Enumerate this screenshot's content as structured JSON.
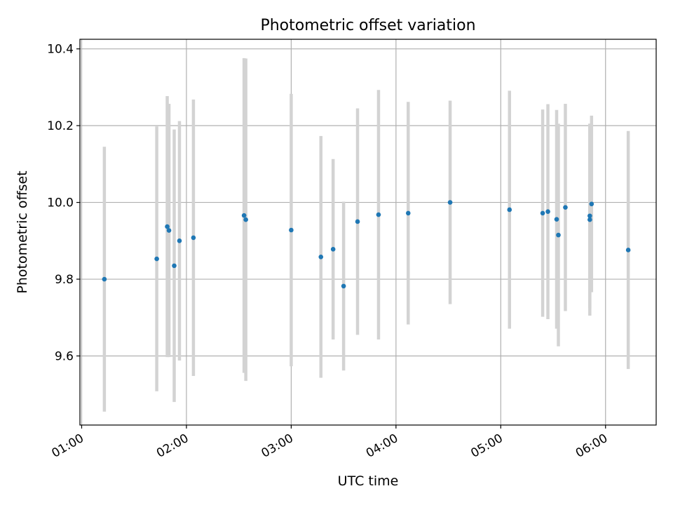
{
  "chart_data": {
    "type": "scatter",
    "title": "Photometric offset variation",
    "xlabel": "UTC time",
    "ylabel": "Photometric offset",
    "x_unit": "UTC clock time",
    "x_range": [
      "00:59",
      "06:29"
    ],
    "ylim": [
      9.42,
      10.425
    ],
    "x_ticks": [
      "01:00",
      "02:00",
      "03:00",
      "04:00",
      "05:00",
      "06:00"
    ],
    "y_ticks": [
      9.6,
      9.8,
      10.0,
      10.2,
      10.4
    ],
    "y_tick_labels": [
      "9.6",
      "9.8",
      "10.0",
      "10.2",
      "10.4"
    ],
    "grid": true,
    "errorbar_color": "#d3d3d3",
    "marker_color": "#1f77b4",
    "points": [
      {
        "t": "01:13",
        "y": 9.8,
        "err": 0.345
      },
      {
        "t": "01:43",
        "y": 9.853,
        "err": 0.345
      },
      {
        "t": "01:49",
        "y": 9.937,
        "err": 0.34
      },
      {
        "t": "01:50",
        "y": 9.927,
        "err": 0.33
      },
      {
        "t": "01:53",
        "y": 9.835,
        "err": 0.355
      },
      {
        "t": "01:56",
        "y": 9.9,
        "err": 0.312
      },
      {
        "t": "02:04",
        "y": 9.908,
        "err": 0.36
      },
      {
        "t": "02:33",
        "y": 9.966,
        "err": 0.41
      },
      {
        "t": "02:34",
        "y": 9.955,
        "err": 0.42
      },
      {
        "t": "03:00",
        "y": 9.928,
        "err": 0.355
      },
      {
        "t": "03:17",
        "y": 9.858,
        "err": 0.315
      },
      {
        "t": "03:24",
        "y": 9.878,
        "err": 0.235
      },
      {
        "t": "03:30",
        "y": 9.782,
        "err": 0.22
      },
      {
        "t": "03:38",
        "y": 9.95,
        "err": 0.295
      },
      {
        "t": "03:50",
        "y": 9.968,
        "err": 0.325
      },
      {
        "t": "04:07",
        "y": 9.972,
        "err": 0.29
      },
      {
        "t": "04:31",
        "y": 10.0,
        "err": 0.265
      },
      {
        "t": "05:05",
        "y": 9.981,
        "err": 0.31
      },
      {
        "t": "05:24",
        "y": 9.972,
        "err": 0.27
      },
      {
        "t": "05:27",
        "y": 9.976,
        "err": 0.28
      },
      {
        "t": "05:32",
        "y": 9.956,
        "err": 0.285
      },
      {
        "t": "05:33",
        "y": 9.915,
        "err": 0.29
      },
      {
        "t": "05:37",
        "y": 9.987,
        "err": 0.27
      },
      {
        "t": "05:51",
        "y": 9.955,
        "err": 0.25
      },
      {
        "t": "05:51",
        "y": 9.965,
        "err": 0.24
      },
      {
        "t": "05:52",
        "y": 9.996,
        "err": 0.23
      },
      {
        "t": "06:13",
        "y": 9.876,
        "err": 0.31
      }
    ]
  }
}
